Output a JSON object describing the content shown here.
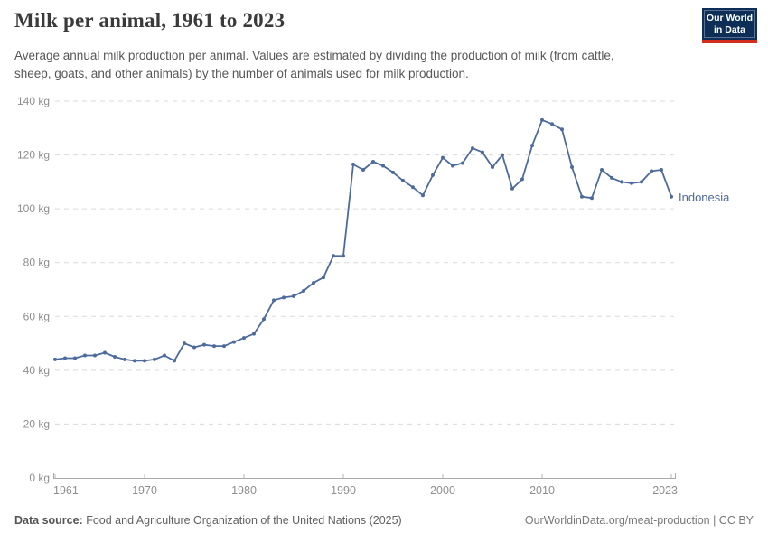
{
  "header": {
    "title": "Milk per animal, 1961 to 2023",
    "subtitle": "Average annual milk production per animal. Values are estimated by dividing the production of milk (from cattle, sheep, goats, and other animals) by the number of animals used for milk production."
  },
  "logo": {
    "line1": "Our World",
    "line2": "in Data",
    "bg_color": "#0d2e57",
    "accent_color": "#d12e1e"
  },
  "chart_data": {
    "type": "line",
    "title": "Milk per animal, 1961 to 2023",
    "entity": "Indonesia",
    "unit": "kg",
    "line_color": "#4C6A9C",
    "xlim": [
      1961,
      2023
    ],
    "ylim": [
      0,
      140
    ],
    "grid": true,
    "yticks": [
      0,
      20,
      40,
      60,
      80,
      100,
      120,
      140
    ],
    "ytick_suffix": " kg",
    "xticks": [
      1961,
      1970,
      1980,
      1990,
      2000,
      2010,
      2023
    ],
    "x": [
      1961,
      1962,
      1963,
      1964,
      1965,
      1966,
      1967,
      1968,
      1969,
      1970,
      1971,
      1972,
      1973,
      1974,
      1975,
      1976,
      1977,
      1978,
      1979,
      1980,
      1981,
      1982,
      1983,
      1984,
      1985,
      1986,
      1987,
      1988,
      1989,
      1990,
      1991,
      1992,
      1993,
      1994,
      1995,
      1996,
      1997,
      1998,
      1999,
      2000,
      2001,
      2002,
      2003,
      2004,
      2005,
      2006,
      2007,
      2008,
      2009,
      2010,
      2011,
      2012,
      2013,
      2014,
      2015,
      2016,
      2017,
      2018,
      2019,
      2020,
      2021,
      2022,
      2023
    ],
    "values": [
      44,
      44.5,
      44.5,
      45.5,
      45.5,
      46.5,
      45,
      44,
      43.5,
      43.5,
      44,
      45.5,
      43.5,
      50,
      48.5,
      49.5,
      49,
      49,
      50.5,
      52,
      53.5,
      59,
      66,
      67,
      67.5,
      69.5,
      72.5,
      74.5,
      82.5,
      82.5,
      116.5,
      114.5,
      117.5,
      116,
      113.5,
      110.5,
      108,
      105,
      112.5,
      119,
      116,
      117,
      122.5,
      121,
      115.5,
      120,
      107.5,
      111,
      123.5,
      133,
      131.5,
      129.5,
      115.5,
      104.5,
      104,
      114.5,
      111.5,
      110,
      109.5,
      110,
      114,
      114.5,
      104.5
    ]
  },
  "footer": {
    "source_label": "Data source:",
    "source_text": " Food and Agriculture Organization of the United Nations (2025)",
    "credit": "OurWorldinData.org/meat-production | CC BY"
  }
}
